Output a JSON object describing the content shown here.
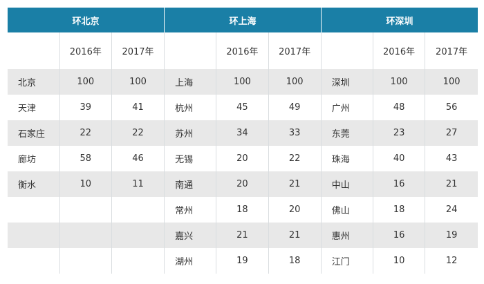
{
  "groups": [
    {
      "title": "环北京",
      "years": [
        "2016年",
        "2017年"
      ]
    },
    {
      "title": "环上海",
      "years": [
        "2016年",
        "2017年"
      ]
    },
    {
      "title": "环深圳",
      "years": [
        "2016年",
        "2017年"
      ]
    }
  ],
  "rows": [
    [
      {
        "city": "北京",
        "v2016": "100",
        "v2017": "100"
      },
      {
        "city": "上海",
        "v2016": "100",
        "v2017": "100"
      },
      {
        "city": "深圳",
        "v2016": "100",
        "v2017": "100"
      }
    ],
    [
      {
        "city": "天津",
        "v2016": "39",
        "v2017": "41"
      },
      {
        "city": "杭州",
        "v2016": "45",
        "v2017": "49"
      },
      {
        "city": "广州",
        "v2016": "48",
        "v2017": "56"
      }
    ],
    [
      {
        "city": "石家庄",
        "v2016": "22",
        "v2017": "22"
      },
      {
        "city": "苏州",
        "v2016": "34",
        "v2017": "33"
      },
      {
        "city": "东莞",
        "v2016": "23",
        "v2017": "27"
      }
    ],
    [
      {
        "city": "廊坊",
        "v2016": "58",
        "v2017": "46"
      },
      {
        "city": "无锡",
        "v2016": "20",
        "v2017": "22"
      },
      {
        "city": "珠海",
        "v2016": "40",
        "v2017": "43"
      }
    ],
    [
      {
        "city": "衡水",
        "v2016": "10",
        "v2017": "11"
      },
      {
        "city": "南通",
        "v2016": "20",
        "v2017": "21"
      },
      {
        "city": "中山",
        "v2016": "16",
        "v2017": "21"
      }
    ],
    [
      {
        "city": "",
        "v2016": "",
        "v2017": ""
      },
      {
        "city": "常州",
        "v2016": "18",
        "v2017": "20"
      },
      {
        "city": "佛山",
        "v2016": "18",
        "v2017": "24"
      }
    ],
    [
      {
        "city": "",
        "v2016": "",
        "v2017": ""
      },
      {
        "city": "嘉兴",
        "v2016": "21",
        "v2017": "21"
      },
      {
        "city": "惠州",
        "v2016": "16",
        "v2017": "19"
      }
    ],
    [
      {
        "city": "",
        "v2016": "",
        "v2017": ""
      },
      {
        "city": "湖州",
        "v2016": "19",
        "v2017": "18"
      },
      {
        "city": "江门",
        "v2016": "10",
        "v2017": "12"
      }
    ]
  ],
  "colors": {
    "header_bg": "#1a7fa6",
    "shade_row": "#e8e8e8",
    "grid_line": "#d9dde0"
  }
}
